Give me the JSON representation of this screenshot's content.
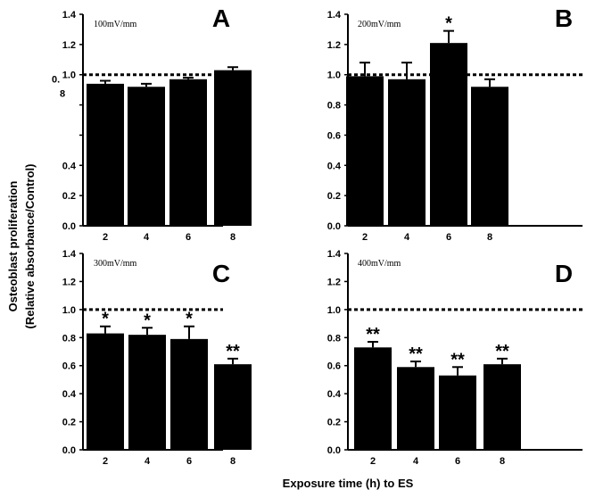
{
  "figure": {
    "ylabel_line1": "Osteoblast proliferation",
    "ylabel_line2": "(Relative absorbance/Control)",
    "xlabel": "Exposure time (h) to ES"
  },
  "chart_data": [
    {
      "type": "bar",
      "panel": "A",
      "annotation": "100mV/mm",
      "categories": [
        "2",
        "4",
        "6",
        "8"
      ],
      "values": [
        0.94,
        0.92,
        0.97,
        1.03
      ],
      "errors": [
        0.02,
        0.02,
        0.01,
        0.02
      ],
      "significance": [
        "",
        "",
        "",
        ""
      ],
      "ylim": [
        0,
        1.4
      ],
      "yticks": [
        "0.0",
        "0.2",
        "0.4",
        "",
        "",
        "1.0",
        "1.2",
        "1.4"
      ],
      "reference_line": 1.0,
      "artifact_text": "0.\n8"
    },
    {
      "type": "bar",
      "panel": "B",
      "annotation": "200mV/mm",
      "categories": [
        "2",
        "4",
        "6",
        "8"
      ],
      "values": [
        0.99,
        0.97,
        1.21,
        0.92
      ],
      "errors": [
        0.09,
        0.11,
        0.08,
        0.05
      ],
      "significance": [
        "",
        "",
        "*",
        ""
      ],
      "ylim": [
        0,
        1.4
      ],
      "yticks": [
        "0.0",
        "0.2",
        "0.4",
        "0.6",
        "0.8",
        "1.0",
        "1.2",
        "1.4"
      ],
      "reference_line": 1.0
    },
    {
      "type": "bar",
      "panel": "C",
      "annotation": "300mV/mm",
      "categories": [
        "2",
        "4",
        "6",
        "8"
      ],
      "values": [
        0.83,
        0.82,
        0.79,
        0.61
      ],
      "errors": [
        0.05,
        0.05,
        0.09,
        0.04
      ],
      "significance": [
        "*",
        "*",
        "*",
        "**"
      ],
      "ylim": [
        0,
        1.4
      ],
      "yticks": [
        "0.0",
        "0.2",
        "0.4",
        "0.6",
        "0.8",
        "1.0",
        "1.2",
        "1.4"
      ],
      "reference_line": 1.0
    },
    {
      "type": "bar",
      "panel": "D",
      "annotation": "400mV/mm",
      "categories": [
        "2",
        "4",
        "6",
        "8"
      ],
      "values": [
        0.73,
        0.59,
        0.53,
        0.61
      ],
      "errors": [
        0.04,
        0.04,
        0.06,
        0.04
      ],
      "significance": [
        "**",
        "**",
        "**",
        "**"
      ],
      "ylim": [
        0,
        1.4
      ],
      "yticks": [
        "0.0",
        "0.2",
        "0.4",
        "0.6",
        "0.8",
        "1.0",
        "1.2",
        "1.4"
      ],
      "reference_line": 1.0
    }
  ]
}
